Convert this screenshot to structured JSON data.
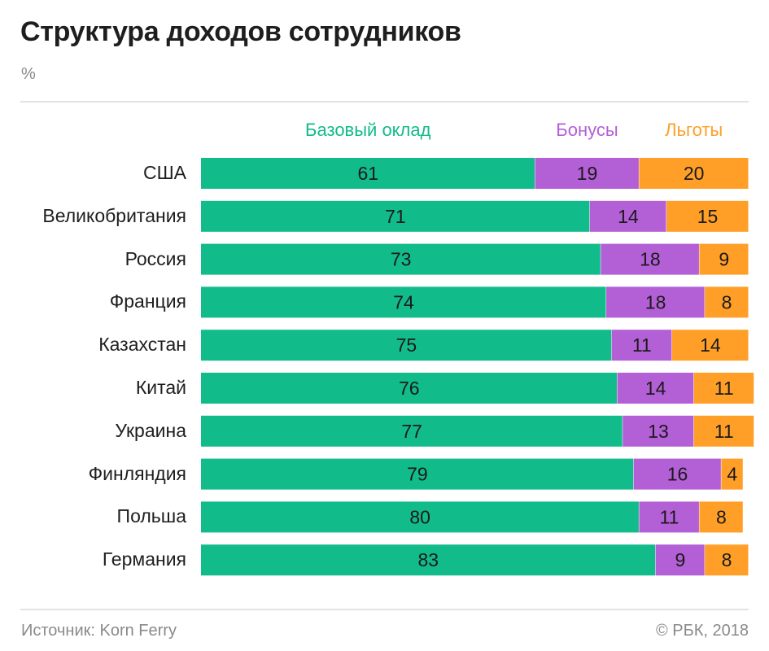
{
  "header": {
    "title": "Структура доходов сотрудников",
    "unit": "%"
  },
  "footer": {
    "source": "Источник: Korn Ferry",
    "copyright": "© РБК, 2018"
  },
  "colors": {
    "base": "#12bb8a",
    "bonus": "#b35fd6",
    "benefits": "#ff9f28"
  },
  "chart_data": {
    "type": "bar",
    "orientation": "horizontal",
    "stacked": true,
    "title": "Структура доходов сотрудников",
    "ylabel": "",
    "xlabel": "",
    "unit": "%",
    "xlim": [
      0,
      100
    ],
    "grid": false,
    "legend_position": "top",
    "categories": [
      "США",
      "Великобритания",
      "Россия",
      "Франция",
      "Казахстан",
      "Китай",
      "Украина",
      "Финляндия",
      "Польша",
      "Германия"
    ],
    "series": [
      {
        "name": "Базовый оклад",
        "color": "#12bb8a",
        "values": [
          61,
          71,
          73,
          74,
          75,
          76,
          77,
          79,
          80,
          83
        ]
      },
      {
        "name": "Бонусы",
        "color": "#b35fd6",
        "values": [
          19,
          14,
          18,
          18,
          11,
          14,
          13,
          16,
          11,
          9
        ]
      },
      {
        "name": "Льготы",
        "color": "#ff9f28",
        "values": [
          20,
          15,
          9,
          8,
          14,
          11,
          11,
          4,
          8,
          8
        ]
      }
    ]
  }
}
